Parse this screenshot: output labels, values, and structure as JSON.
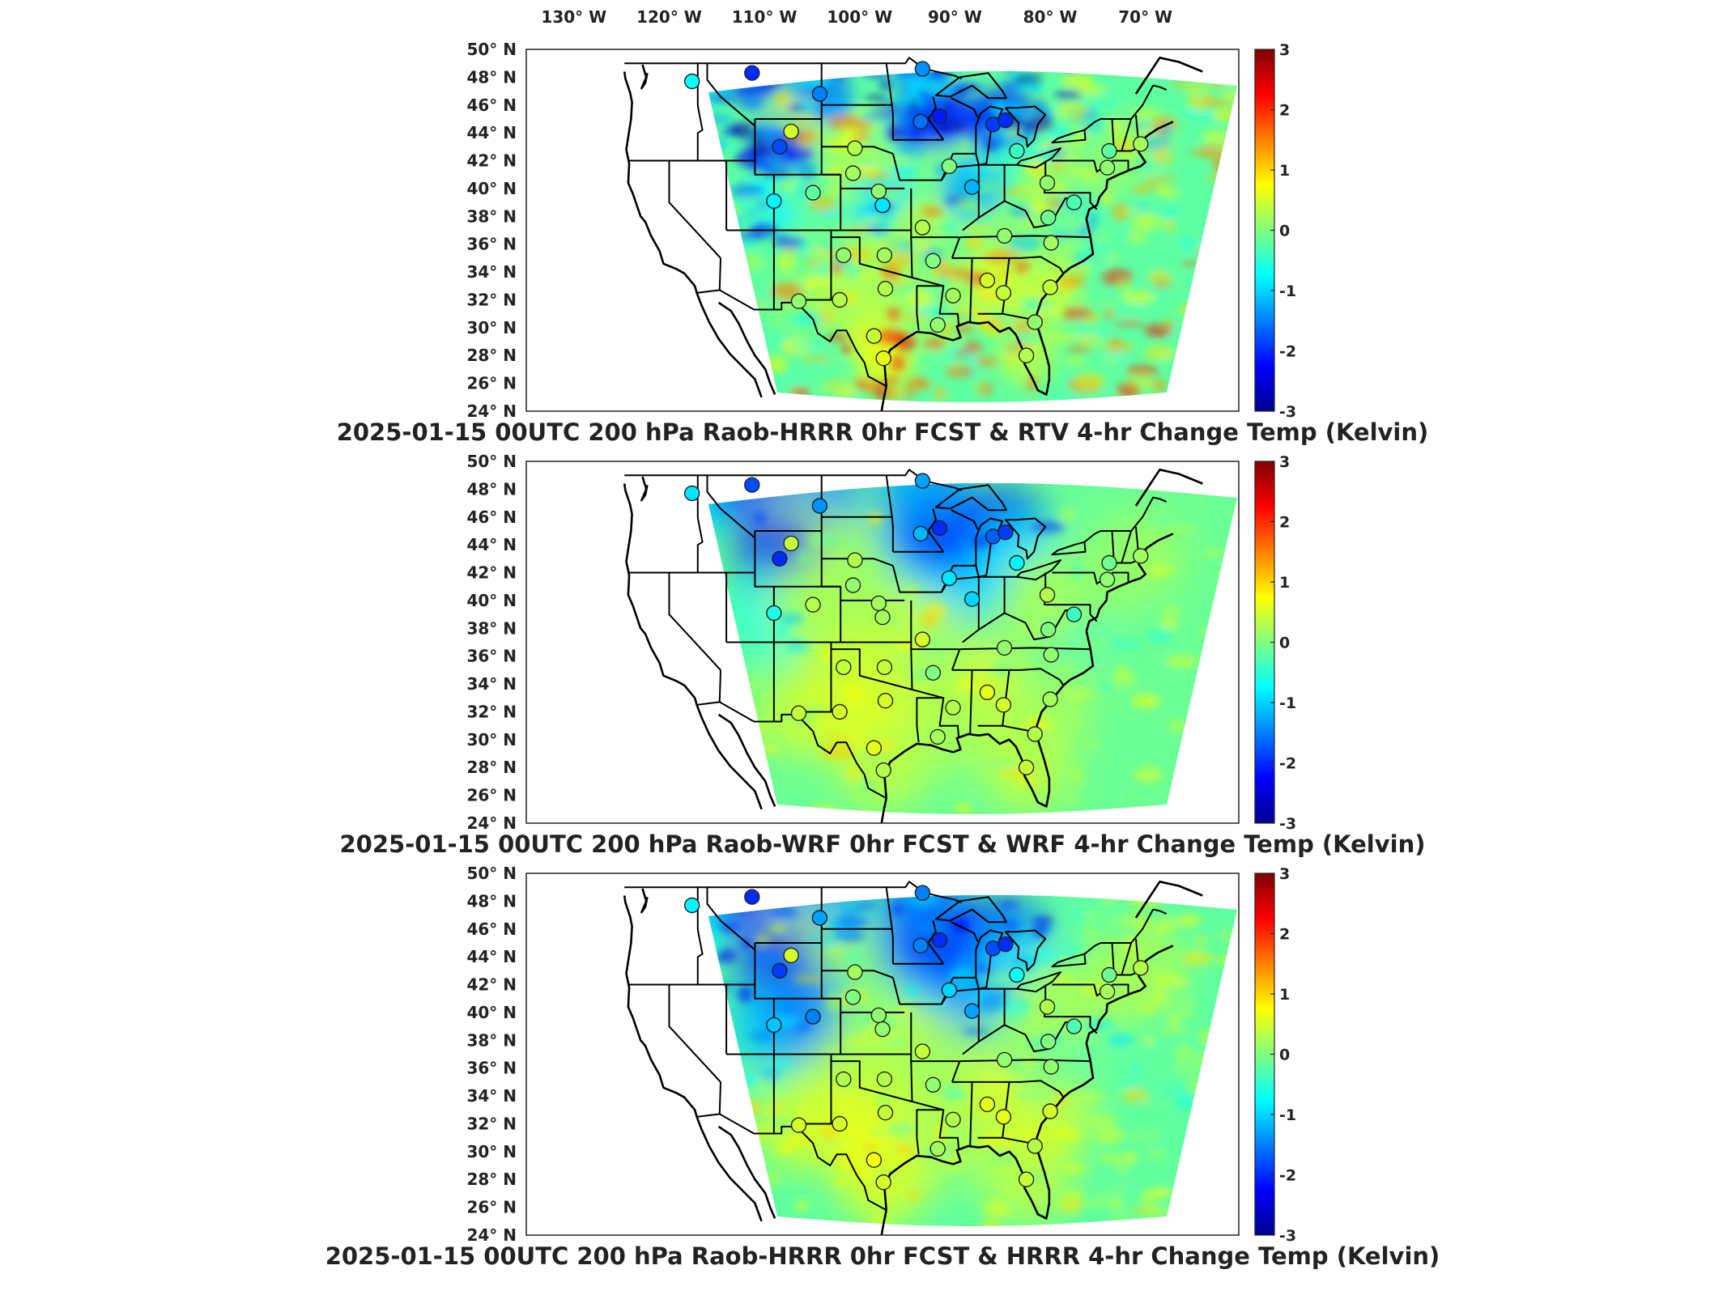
{
  "lon_labels": [
    "130° W",
    "120° W",
    "110° W",
    "100° W",
    "90° W",
    "80° W",
    "70° W"
  ],
  "lat_labels": [
    "50° N",
    "48° N",
    "46° N",
    "44° N",
    "42° N",
    "40° N",
    "38° N",
    "36° N",
    "34° N",
    "32° N",
    "30° N",
    "28° N",
    "26° N",
    "24° N"
  ],
  "colorbar": {
    "ticks": [
      "3",
      "2",
      "1",
      "0",
      "-1",
      "-2",
      "-3"
    ],
    "colormap": "jet",
    "range": [
      -3,
      3
    ],
    "colors": [
      "#00008f",
      "#0000ff",
      "#0080ff",
      "#00ffff",
      "#80ff80",
      "#ffff00",
      "#ff8000",
      "#ff0000",
      "#800000"
    ]
  },
  "panels": [
    {
      "title": "2025-01-15 00UTC 200 hPa Raob-HRRR 0hr FCST & RTV 4-hr Change Temp (Kelvin)",
      "field_style": "noisy-mixed",
      "stations": [
        {
          "lat": 47.7,
          "lon": -117.6,
          "value": -0.7
        },
        {
          "lat": 48.3,
          "lon": -111.3,
          "value": -2.0
        },
        {
          "lat": 46.8,
          "lon": -104.2,
          "value": -1.5
        },
        {
          "lat": 44.1,
          "lon": -107.2,
          "value": 0.5
        },
        {
          "lat": 43.0,
          "lon": -108.4,
          "value": -1.8
        },
        {
          "lat": 39.1,
          "lon": -109.0,
          "value": -0.8
        },
        {
          "lat": 42.9,
          "lon": -100.5,
          "value": 0.3
        },
        {
          "lat": 41.1,
          "lon": -100.7,
          "value": 0.2
        },
        {
          "lat": 39.7,
          "lon": -104.9,
          "value": -0.2
        },
        {
          "lat": 39.8,
          "lon": -98.0,
          "value": 0.1
        },
        {
          "lat": 44.8,
          "lon": -93.6,
          "value": -1.6
        },
        {
          "lat": 44.6,
          "lon": -86.0,
          "value": -1.9
        },
        {
          "lat": 44.9,
          "lon": -84.7,
          "value": -2.0
        },
        {
          "lat": 42.7,
          "lon": -83.5,
          "value": -0.4
        },
        {
          "lat": 41.6,
          "lon": -90.6,
          "value": 0.0
        },
        {
          "lat": 40.1,
          "lon": -88.2,
          "value": -1.2
        },
        {
          "lat": 38.8,
          "lon": -97.6,
          "value": -0.9
        },
        {
          "lat": 37.2,
          "lon": -93.4,
          "value": 0.3
        },
        {
          "lat": 36.6,
          "lon": -84.8,
          "value": 0.1
        },
        {
          "lat": 35.2,
          "lon": -101.7,
          "value": 0.1
        },
        {
          "lat": 35.2,
          "lon": -97.4,
          "value": 0.2
        },
        {
          "lat": 34.8,
          "lon": -92.3,
          "value": 0.0
        },
        {
          "lat": 32.5,
          "lon": -84.9,
          "value": 0.4
        },
        {
          "lat": 33.4,
          "lon": -86.6,
          "value": 0.5
        },
        {
          "lat": 32.3,
          "lon": -90.2,
          "value": 0.2
        },
        {
          "lat": 32.8,
          "lon": -97.3,
          "value": 0.3
        },
        {
          "lat": 31.9,
          "lon": -106.4,
          "value": 0.1
        },
        {
          "lat": 32.0,
          "lon": -102.1,
          "value": 0.3
        },
        {
          "lat": 30.2,
          "lon": -91.8,
          "value": 0.1
        },
        {
          "lat": 29.4,
          "lon": -98.5,
          "value": 0.4
        },
        {
          "lat": 27.8,
          "lon": -97.5,
          "value": 0.6
        },
        {
          "lat": 28.0,
          "lon": -82.5,
          "value": 0.3
        },
        {
          "lat": 30.4,
          "lon": -81.6,
          "value": 0.1
        },
        {
          "lat": 32.9,
          "lon": -80.0,
          "value": 0.4
        },
        {
          "lat": 36.1,
          "lon": -79.9,
          "value": 0.2
        },
        {
          "lat": 37.9,
          "lon": -80.2,
          "value": -0.1
        },
        {
          "lat": 39.0,
          "lon": -77.5,
          "value": -0.3
        },
        {
          "lat": 40.4,
          "lon": -80.3,
          "value": 0.1
        },
        {
          "lat": 42.7,
          "lon": -73.8,
          "value": -0.2
        },
        {
          "lat": 43.2,
          "lon": -70.5,
          "value": 0.2
        },
        {
          "lat": 41.5,
          "lon": -74.0,
          "value": 0.1
        },
        {
          "lat": 45.2,
          "lon": -91.6,
          "value": -2.1
        },
        {
          "lat": 48.6,
          "lon": -93.4,
          "value": -1.4
        }
      ]
    },
    {
      "title": "2025-01-15 00UTC 200 hPa Raob-WRF 0hr FCST & WRF 4-hr Change Temp (Kelvin)",
      "field_style": "smooth",
      "stations": [
        {
          "lat": 47.7,
          "lon": -117.6,
          "value": -0.9
        },
        {
          "lat": 48.3,
          "lon": -111.3,
          "value": -1.8
        },
        {
          "lat": 46.8,
          "lon": -104.2,
          "value": -1.4
        },
        {
          "lat": 44.1,
          "lon": -107.2,
          "value": 0.4
        },
        {
          "lat": 43.0,
          "lon": -108.4,
          "value": -2.0
        },
        {
          "lat": 39.1,
          "lon": -109.0,
          "value": -0.6
        },
        {
          "lat": 42.9,
          "lon": -100.5,
          "value": 0.3
        },
        {
          "lat": 41.1,
          "lon": -100.7,
          "value": 0.1
        },
        {
          "lat": 39.7,
          "lon": -104.9,
          "value": 0.3
        },
        {
          "lat": 39.8,
          "lon": -98.0,
          "value": 0.2
        },
        {
          "lat": 44.8,
          "lon": -93.6,
          "value": -1.2
        },
        {
          "lat": 44.6,
          "lon": -86.0,
          "value": -1.7
        },
        {
          "lat": 44.9,
          "lon": -84.7,
          "value": -1.9
        },
        {
          "lat": 42.7,
          "lon": -83.5,
          "value": -0.8
        },
        {
          "lat": 41.6,
          "lon": -90.6,
          "value": -0.9
        },
        {
          "lat": 40.1,
          "lon": -88.2,
          "value": -1.0
        },
        {
          "lat": 38.8,
          "lon": -97.6,
          "value": 0.2
        },
        {
          "lat": 37.2,
          "lon": -93.4,
          "value": 0.5
        },
        {
          "lat": 36.6,
          "lon": -84.8,
          "value": 0.1
        },
        {
          "lat": 35.2,
          "lon": -101.7,
          "value": 0.4
        },
        {
          "lat": 35.2,
          "lon": -97.4,
          "value": 0.4
        },
        {
          "lat": 34.8,
          "lon": -92.3,
          "value": 0.0
        },
        {
          "lat": 32.5,
          "lon": -84.9,
          "value": 0.5
        },
        {
          "lat": 33.4,
          "lon": -86.6,
          "value": 0.6
        },
        {
          "lat": 32.3,
          "lon": -90.2,
          "value": 0.3
        },
        {
          "lat": 32.8,
          "lon": -97.3,
          "value": 0.5
        },
        {
          "lat": 31.9,
          "lon": -106.4,
          "value": 0.4
        },
        {
          "lat": 32.0,
          "lon": -102.1,
          "value": 0.5
        },
        {
          "lat": 30.2,
          "lon": -91.8,
          "value": 0.2
        },
        {
          "lat": 29.4,
          "lon": -98.5,
          "value": 0.6
        },
        {
          "lat": 27.8,
          "lon": -97.5,
          "value": 0.3
        },
        {
          "lat": 28.0,
          "lon": -82.5,
          "value": 0.4
        },
        {
          "lat": 30.4,
          "lon": -81.6,
          "value": 0.3
        },
        {
          "lat": 32.9,
          "lon": -80.0,
          "value": 0.2
        },
        {
          "lat": 36.1,
          "lon": -79.9,
          "value": 0.1
        },
        {
          "lat": 37.9,
          "lon": -80.2,
          "value": 0.0
        },
        {
          "lat": 39.0,
          "lon": -77.5,
          "value": -0.4
        },
        {
          "lat": 40.4,
          "lon": -80.3,
          "value": 0.3
        },
        {
          "lat": 42.7,
          "lon": -73.8,
          "value": -0.1
        },
        {
          "lat": 43.2,
          "lon": -70.5,
          "value": 0.2
        },
        {
          "lat": 41.5,
          "lon": -74.0,
          "value": 0.1
        },
        {
          "lat": 45.2,
          "lon": -91.6,
          "value": -2.0
        },
        {
          "lat": 48.6,
          "lon": -93.4,
          "value": -1.3
        }
      ]
    },
    {
      "title": "2025-01-15 00UTC 200 hPa Raob-HRRR 0hr FCST & HRRR 4-hr Change Temp (Kelvin)",
      "field_style": "smooth-detailed",
      "stations": [
        {
          "lat": 47.7,
          "lon": -117.6,
          "value": -0.8
        },
        {
          "lat": 48.3,
          "lon": -111.3,
          "value": -2.0
        },
        {
          "lat": 46.8,
          "lon": -104.2,
          "value": -1.3
        },
        {
          "lat": 44.1,
          "lon": -107.2,
          "value": 0.5
        },
        {
          "lat": 43.0,
          "lon": -108.4,
          "value": -1.9
        },
        {
          "lat": 39.1,
          "lon": -109.0,
          "value": -1.1
        },
        {
          "lat": 42.9,
          "lon": -100.5,
          "value": 0.2
        },
        {
          "lat": 41.1,
          "lon": -100.7,
          "value": 0.0
        },
        {
          "lat": 39.7,
          "lon": -104.9,
          "value": -1.5
        },
        {
          "lat": 39.8,
          "lon": -98.0,
          "value": 0.1
        },
        {
          "lat": 44.8,
          "lon": -93.6,
          "value": -1.5
        },
        {
          "lat": 44.6,
          "lon": -86.0,
          "value": -1.8
        },
        {
          "lat": 44.9,
          "lon": -84.7,
          "value": -2.0
        },
        {
          "lat": 42.7,
          "lon": -83.5,
          "value": -0.7
        },
        {
          "lat": 41.6,
          "lon": -90.6,
          "value": -1.0
        },
        {
          "lat": 40.1,
          "lon": -88.2,
          "value": -1.3
        },
        {
          "lat": 38.8,
          "lon": -97.6,
          "value": 0.1
        },
        {
          "lat": 37.2,
          "lon": -93.4,
          "value": 0.4
        },
        {
          "lat": 36.6,
          "lon": -84.8,
          "value": 0.1
        },
        {
          "lat": 35.2,
          "lon": -101.7,
          "value": 0.3
        },
        {
          "lat": 35.2,
          "lon": -97.4,
          "value": 0.3
        },
        {
          "lat": 34.8,
          "lon": -92.3,
          "value": 0.1
        },
        {
          "lat": 32.5,
          "lon": -84.9,
          "value": 0.6
        },
        {
          "lat": 33.4,
          "lon": -86.6,
          "value": 0.6
        },
        {
          "lat": 32.3,
          "lon": -90.2,
          "value": 0.3
        },
        {
          "lat": 32.8,
          "lon": -97.3,
          "value": 0.4
        },
        {
          "lat": 31.9,
          "lon": -106.4,
          "value": 0.5
        },
        {
          "lat": 32.0,
          "lon": -102.1,
          "value": 0.5
        },
        {
          "lat": 30.2,
          "lon": -91.8,
          "value": 0.2
        },
        {
          "lat": 29.4,
          "lon": -98.5,
          "value": 0.7
        },
        {
          "lat": 27.8,
          "lon": -97.5,
          "value": 0.5
        },
        {
          "lat": 28.0,
          "lon": -82.5,
          "value": 0.4
        },
        {
          "lat": 30.4,
          "lon": -81.6,
          "value": 0.3
        },
        {
          "lat": 32.9,
          "lon": -80.0,
          "value": 0.5
        },
        {
          "lat": 36.1,
          "lon": -79.9,
          "value": 0.1
        },
        {
          "lat": 37.9,
          "lon": -80.2,
          "value": 0.0
        },
        {
          "lat": 39.0,
          "lon": -77.5,
          "value": -0.3
        },
        {
          "lat": 40.4,
          "lon": -80.3,
          "value": 0.3
        },
        {
          "lat": 42.7,
          "lon": -73.8,
          "value": -0.1
        },
        {
          "lat": 43.2,
          "lon": -70.5,
          "value": 0.3
        },
        {
          "lat": 41.5,
          "lon": -74.0,
          "value": 0.2
        },
        {
          "lat": 45.2,
          "lon": -91.6,
          "value": -2.0
        },
        {
          "lat": 48.6,
          "lon": -93.4,
          "value": -1.5
        }
      ]
    }
  ]
}
